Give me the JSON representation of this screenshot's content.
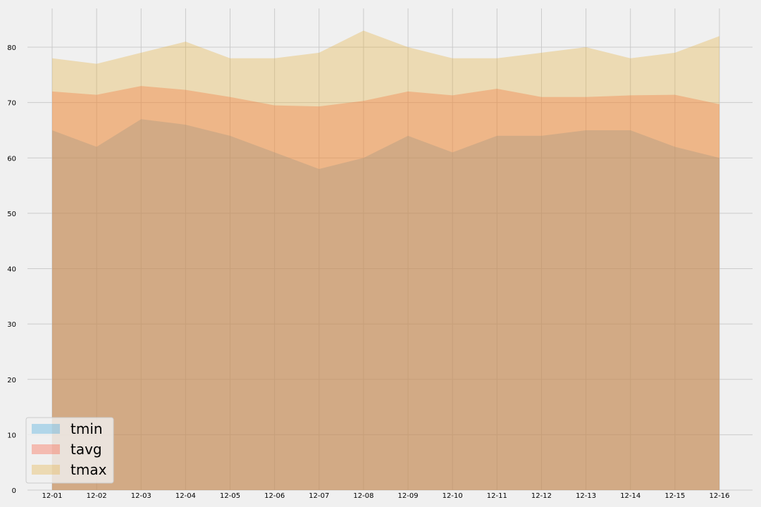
{
  "chart_data": {
    "type": "area",
    "x": [
      "12-01",
      "12-02",
      "12-03",
      "12-04",
      "12-05",
      "12-06",
      "12-07",
      "12-08",
      "12-09",
      "12-10",
      "12-11",
      "12-12",
      "12-13",
      "12-14",
      "12-15",
      "12-16"
    ],
    "series": [
      {
        "name": "tmin",
        "color": "#30a2da",
        "values": [
          65,
          62,
          67,
          66,
          64,
          61,
          58,
          60,
          64,
          61,
          64,
          64,
          65,
          65,
          62,
          60
        ]
      },
      {
        "name": "tavg",
        "color": "#fc4f30",
        "values": [
          72,
          71.4,
          73,
          72.3,
          71,
          69.5,
          69.3,
          70.3,
          72,
          71.3,
          72.5,
          71,
          71,
          71.3,
          71.4,
          69.7
        ]
      },
      {
        "name": "tmax",
        "color": "#e5ae38",
        "values": [
          78,
          77,
          79,
          81,
          78,
          78,
          79,
          83,
          80,
          78,
          78,
          79,
          80,
          78,
          79,
          82
        ]
      }
    ],
    "ylim": [
      0,
      87
    ],
    "yticks": [
      0,
      10,
      20,
      30,
      40,
      50,
      60,
      70,
      80
    ],
    "grid": true,
    "legend_position": "lower-left",
    "title": "",
    "xlabel": "",
    "ylabel": ""
  }
}
